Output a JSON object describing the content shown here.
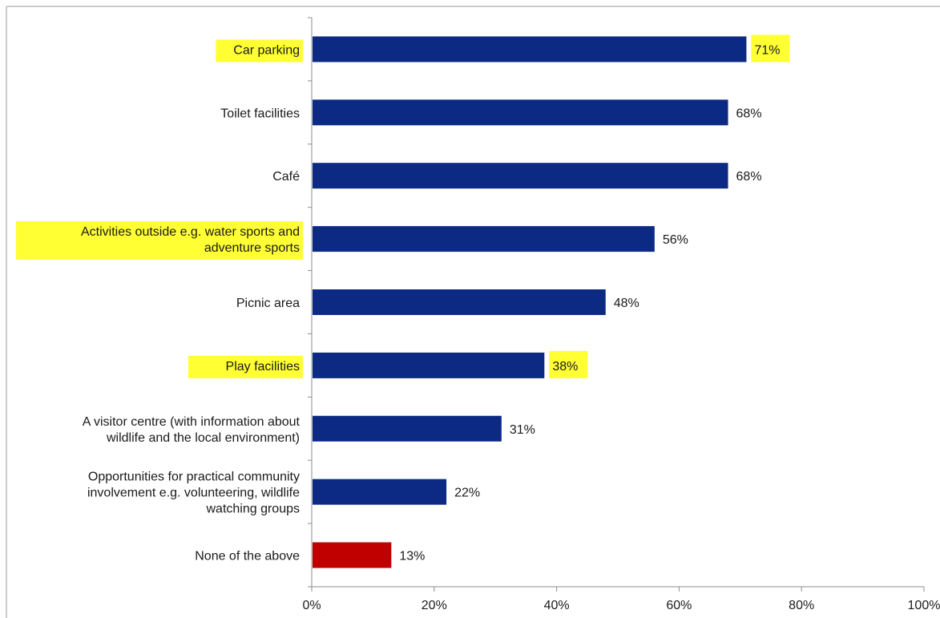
{
  "chart_data": {
    "type": "bar",
    "orientation": "horizontal",
    "categories": [
      [
        "Car parking"
      ],
      [
        "Toilet facilities"
      ],
      [
        "Café"
      ],
      [
        "Activities outside e.g. water sports and",
        "adventure sports"
      ],
      [
        "Picnic area"
      ],
      [
        "Play facilities"
      ],
      [
        "A visitor centre (with information about",
        "wildlife and the local environment)"
      ],
      [
        "Opportunities for practical community",
        "involvement e.g. volunteering, wildlife",
        "watching groups"
      ],
      [
        "None of the above"
      ]
    ],
    "values": [
      71,
      68,
      68,
      56,
      48,
      38,
      31,
      22,
      13
    ],
    "value_labels": [
      "71%",
      "68%",
      "68%",
      "56%",
      "48%",
      "38%",
      "31%",
      "22%",
      "13%"
    ],
    "bar_colors": [
      "#0c2a83",
      "#0c2a83",
      "#0c2a83",
      "#0c2a83",
      "#0c2a83",
      "#0c2a83",
      "#0c2a83",
      "#0c2a83",
      "#c00000"
    ],
    "highlighted_categories": [
      0,
      3,
      5
    ],
    "highlighted_values": [
      0,
      5
    ],
    "highlight_color": "#ffff33",
    "xlim": [
      0,
      100
    ],
    "xticks": [
      "0%",
      "20%",
      "40%",
      "60%",
      "80%",
      "100%"
    ],
    "title": "",
    "xlabel": "",
    "ylabel": "",
    "grid": false,
    "legend": "none"
  }
}
